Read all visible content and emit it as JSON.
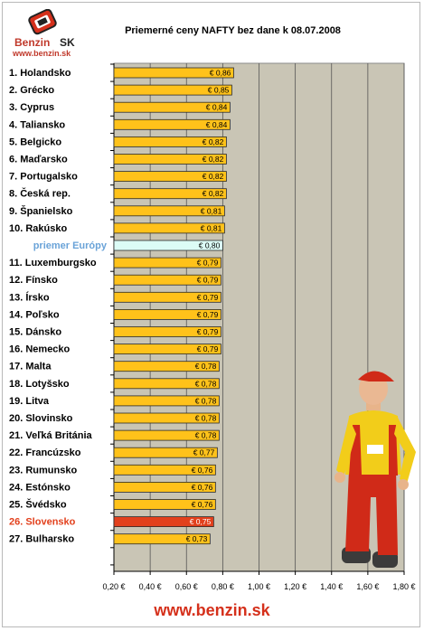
{
  "logo": {
    "brand": "Benzin",
    "suffix": "SK",
    "url": "www.benzin.sk"
  },
  "footer": {
    "url": "www.benzin.sk"
  },
  "colors": {
    "bar": "#ffc21a",
    "bar_stroke": "#2b2b2b",
    "highlight_bar": "#e2401c",
    "average_bar": "#dcfcf6",
    "plot_bg": "#c9c5b5",
    "highlight_label": "#e2401c",
    "average_label": "#6aa3d8"
  },
  "chart_data": {
    "type": "bar",
    "orientation": "horizontal",
    "title": "Priemerné ceny NAFTY bez dane k 08.07.2008",
    "xlim": [
      0.2,
      1.8
    ],
    "x_ticks": [
      "0,20 €",
      "0,40 €",
      "0,60 €",
      "0,80 €",
      "1,00 €",
      "1,20 €",
      "1,40 €",
      "1,60 €",
      "1,80 €"
    ],
    "grid": true,
    "categories": [
      "1. Holandsko",
      "2. Grécko",
      "3. Cyprus",
      "4. Taliansko",
      "5. Belgicko",
      "6. Maďarsko",
      "7. Portugalsko",
      "8. Česká rep.",
      "9. Španielsko",
      "10. Rakúsko",
      "priemer Európy",
      "11. Luxemburgsko",
      "12. Fínsko",
      "13. Írsko",
      "14. Poľsko",
      "15. Dánsko",
      "16. Nemecko",
      "17. Malta",
      "18. Lotyšsko",
      "19. Litva",
      "20. Slovinsko",
      "21. Veľká Británia",
      "22. Francúzsko",
      "23. Rumunsko",
      "24. Estónsko",
      "25. Švédsko",
      "26. Slovensko",
      "27. Bulharsko"
    ],
    "values": [
      0.86,
      0.85,
      0.84,
      0.84,
      0.82,
      0.82,
      0.82,
      0.82,
      0.81,
      0.81,
      0.8,
      0.79,
      0.79,
      0.79,
      0.79,
      0.79,
      0.79,
      0.78,
      0.78,
      0.78,
      0.78,
      0.78,
      0.77,
      0.76,
      0.76,
      0.76,
      0.75,
      0.73
    ],
    "value_labels": [
      "€ 0,86",
      "€ 0,85",
      "€ 0,84",
      "€ 0,84",
      "€ 0,82",
      "€ 0,82",
      "€ 0,82",
      "€ 0,82",
      "€ 0,81",
      "€ 0,81",
      "€ 0,80",
      "€ 0,79",
      "€ 0,79",
      "€ 0,79",
      "€ 0,79",
      "€ 0,79",
      "€ 0,79",
      "€ 0,78",
      "€ 0,78",
      "€ 0,78",
      "€ 0,78",
      "€ 0,78",
      "€ 0,77",
      "€ 0,76",
      "€ 0,76",
      "€ 0,76",
      "€ 0,75",
      "€ 0,73"
    ],
    "average_category": "priemer Európy",
    "highlight_category": "26. Slovensko"
  }
}
